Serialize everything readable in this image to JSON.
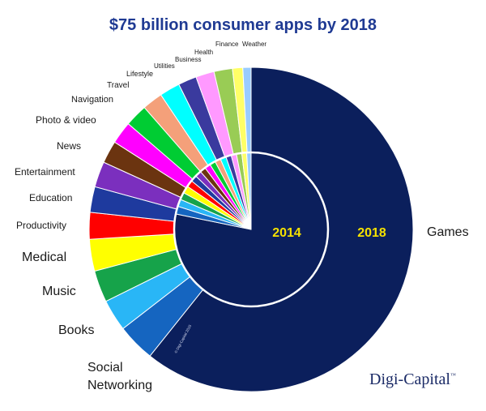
{
  "chart_data": {
    "type": "pie",
    "title": "$75 billion consumer apps by 2018",
    "rings": [
      "2014",
      "2018"
    ],
    "categories": [
      "Games",
      "Social Networking",
      "Books",
      "Music",
      "Medical",
      "Productivity",
      "Education",
      "Entertainment",
      "News",
      "Photo & video",
      "Navigation",
      "Travel",
      "Lifestyle",
      "Utilities",
      "Business",
      "Health",
      "Finance",
      "Weather"
    ],
    "colors": [
      "#0b1f5c",
      "#1565c0",
      "#29b6f6",
      "#16a34a",
      "#ffff00",
      "#ff0000",
      "#1e3a9e",
      "#7b2fbe",
      "#6b3410",
      "#ff00ff",
      "#00cc33",
      "#f4a07a",
      "#00ffff",
      "#3a3a9e",
      "#ff99ff",
      "#99cc55",
      "#ffff66",
      "#99ccff"
    ],
    "series": [
      {
        "name": "2014",
        "values": [
          76.5,
          1.6,
          1.5,
          1.5,
          1.5,
          1.4,
          1.3,
          1.3,
          1.2,
          1.2,
          1.2,
          1.2,
          1.2,
          1.1,
          1.1,
          1.1,
          1.0,
          0.9
        ]
      },
      {
        "name": "2018",
        "values": [
          59.4,
          3.7,
          3.1,
          3.1,
          3.1,
          2.6,
          2.5,
          2.5,
          2.2,
          2.2,
          2.2,
          2.0,
          2.0,
          1.8,
          1.8,
          1.8,
          1.0,
          0.8
        ]
      }
    ],
    "legend": "none"
  },
  "branding": {
    "logo": "Digi-Capital",
    "trademark": "™",
    "copyright": "© Digi-Capital 2015"
  },
  "style": {
    "title_color": "#1f3a93",
    "year_label_color": "#f5e100",
    "outline_color": "#ffffff"
  }
}
